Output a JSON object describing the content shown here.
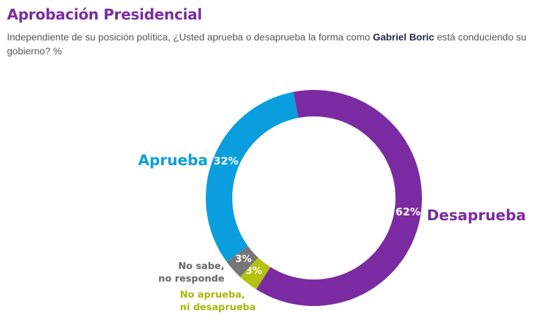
{
  "title": "Aprobación Presidencial",
  "subtitle": {
    "before": "Independiente de su posición política, ¿Usted aprueba o desaprueba la forma como ",
    "bold": "Gabriel Boric",
    "after": " está conduciendo su gobierno? %"
  },
  "chart_data": {
    "type": "pie",
    "style": "donut",
    "slices": [
      {
        "name": "Desaprueba",
        "value": 62,
        "label": "62%",
        "color": "#7b2ba1"
      },
      {
        "name": "No aprueba, ni desaprueba",
        "value": 3,
        "label": "3%",
        "color": "#b3c10f"
      },
      {
        "name": "No sabe, no responde",
        "value": 3,
        "label": "3%",
        "color": "#767676"
      },
      {
        "name": "Aprueba",
        "value": 32,
        "label": "32%",
        "color": "#0a9ede"
      }
    ],
    "legend": {
      "desaprueba": "Desaprueba",
      "aprueba": "Aprueba",
      "nsnr_line1": "No sabe,",
      "nsnr_line2": "no responde",
      "nand_line1": "No aprueba,",
      "nand_line2": "ni desaprueba"
    }
  }
}
